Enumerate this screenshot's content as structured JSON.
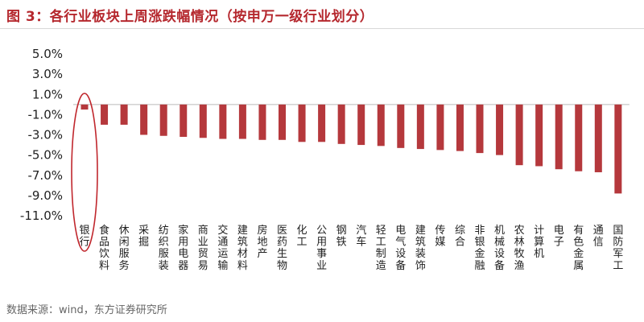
{
  "title": "图 3：各行业板块上周涨跌幅情况（按申万一级行业划分）",
  "source": "数据来源：wind，东方证券研究所",
  "colors": {
    "bar": "#b5383c",
    "title": "#b5282e",
    "ellipse": "#c0272d"
  },
  "chart_data": {
    "type": "bar",
    "title": "",
    "xlabel": "",
    "ylabel": "",
    "ylim": [
      -11,
      5
    ],
    "yticks": [
      "5.0%",
      "3.0%",
      "1.0%",
      "-1.0%",
      "-3.0%",
      "-5.0%",
      "-7.0%",
      "-9.0%",
      "-11.0%"
    ],
    "ytick_values": [
      5,
      3,
      1,
      -1,
      -3,
      -5,
      -7,
      -9,
      -11
    ],
    "grid": false,
    "legend": "none",
    "highlight": "银行",
    "categories": [
      "银行",
      "食品饮料",
      "休闲服务",
      "采掘",
      "纺织服装",
      "家用电器",
      "商业贸易",
      "交通运输",
      "建筑材料",
      "房地产",
      "医药生物",
      "化工",
      "公用事业",
      "钢铁",
      "汽车",
      "轻工制造",
      "电气设备",
      "建筑装饰",
      "传媒",
      "综合",
      "非银金融",
      "机械设备",
      "农林牧渔",
      "计算机",
      "电子",
      "有色金属",
      "通信",
      "国防军工"
    ],
    "values": [
      -0.5,
      -2.0,
      -2.0,
      -3.0,
      -3.1,
      -3.2,
      -3.3,
      -3.4,
      -3.4,
      -3.5,
      -3.5,
      -3.7,
      -3.7,
      -3.9,
      -4.0,
      -4.1,
      -4.3,
      -4.4,
      -4.5,
      -4.6,
      -4.8,
      -5.0,
      -6.0,
      -6.1,
      -6.4,
      -6.6,
      -6.7,
      -8.8
    ]
  }
}
